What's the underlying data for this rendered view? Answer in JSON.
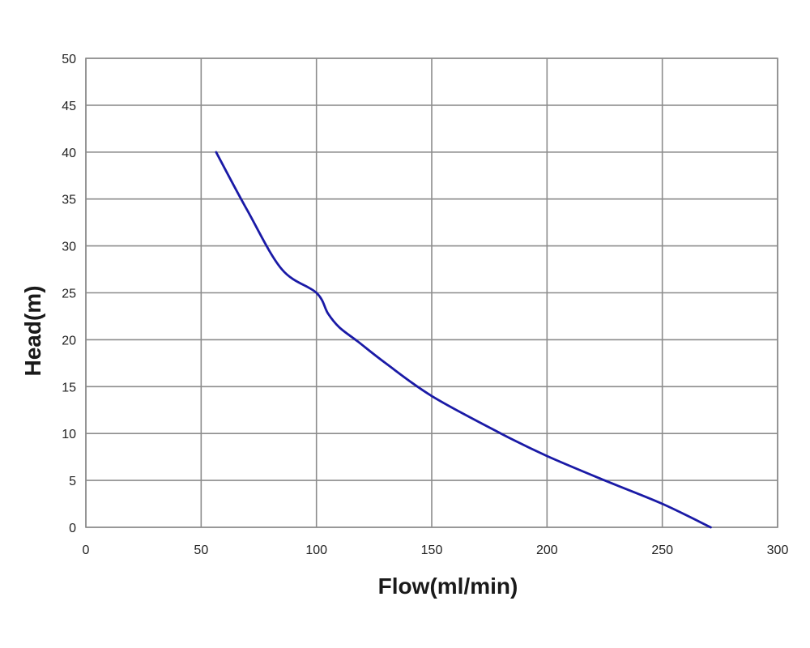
{
  "chart_data": {
    "type": "line",
    "title": "",
    "xlabel": "Flow(ml/min)",
    "ylabel": "Head(m)",
    "xlim": [
      0,
      300
    ],
    "ylim": [
      0,
      50
    ],
    "x_ticks": [
      0,
      50,
      100,
      150,
      200,
      250,
      300
    ],
    "y_ticks": [
      0,
      5,
      10,
      15,
      20,
      25,
      30,
      35,
      40,
      45,
      50
    ],
    "x_tick_labels": [
      "0",
      "50",
      "100",
      "150",
      "200",
      "250",
      "300"
    ],
    "y_tick_labels": [
      "0",
      "5",
      "10",
      "15",
      "20",
      "25",
      "30",
      "35",
      "40",
      "45",
      "50"
    ],
    "grid": true,
    "legend": "none",
    "series": [
      {
        "color": "#1a1aa6",
        "x": [
          56.5,
          70,
          85,
          100,
          105,
          110,
          118,
          130,
          150,
          180,
          200,
          225,
          250,
          271
        ],
        "y": [
          40,
          33.8,
          27.5,
          25,
          22.8,
          21.3,
          19.8,
          17.5,
          14,
          10,
          7.6,
          5,
          2.5,
          0
        ]
      }
    ]
  }
}
